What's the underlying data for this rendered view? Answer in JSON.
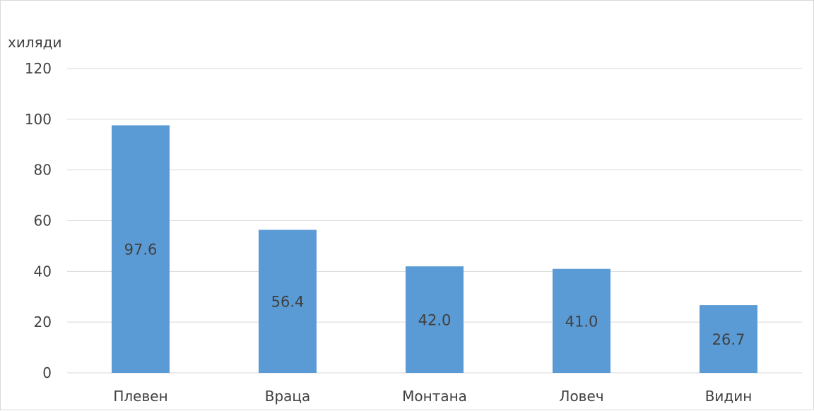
{
  "chart_data": {
    "type": "bar",
    "unit_label": "хиляди",
    "categories": [
      "Плевен",
      "Враца",
      "Монтана",
      "Ловеч",
      "Видин"
    ],
    "values": [
      97.6,
      56.4,
      42.0,
      41.0,
      26.7
    ],
    "data_labels": [
      "97.6",
      "56.4",
      "42.0",
      "41.0",
      "26.7"
    ],
    "y_ticks": [
      "0",
      "20",
      "40",
      "60",
      "80",
      "100",
      "120"
    ],
    "ylim": [
      0,
      120
    ],
    "grid": true,
    "legend": "none",
    "bar_color": "#5b9bd5",
    "grid_color": "#d9d9d9"
  }
}
